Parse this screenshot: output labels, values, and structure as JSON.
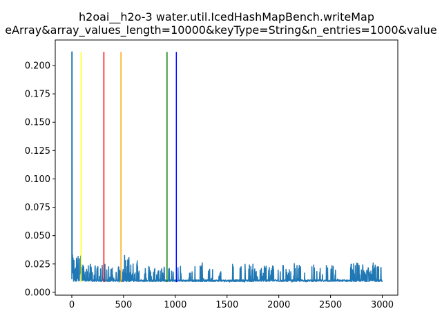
{
  "chart_data": {
    "type": "line",
    "title_line1": "h2oai__h2o-3 water.util.IcedHashMapBench.writeMap",
    "title_line2": "eArray&array_values_length=10000&keyType=String&n_entries=1000&value",
    "xlim": [
      -160,
      3150
    ],
    "ylim": [
      -0.0025,
      0.2225
    ],
    "xticks": [
      0,
      500,
      1000,
      1500,
      2000,
      2500,
      3000
    ],
    "yticks": [
      0.0,
      0.025,
      0.05,
      0.075,
      0.1,
      0.125,
      0.15,
      0.175,
      0.2
    ],
    "ytick_labels": [
      "0.000",
      "0.025",
      "0.050",
      "0.075",
      "0.100",
      "0.125",
      "0.150",
      "0.175",
      "0.200"
    ],
    "series": [
      {
        "color": "#1f77b4",
        "peak": {
          "x": 0,
          "y": 0.212
        },
        "baseline": 0.0095,
        "segments": [
          {
            "x0": 5,
            "x1": 95,
            "lo": 0.01,
            "hi": 0.033,
            "dense": 0.75
          },
          {
            "x0": 95,
            "x1": 200,
            "lo": 0.01,
            "hi": 0.025,
            "dense": 0.45
          },
          {
            "x0": 200,
            "x1": 320,
            "lo": 0.009,
            "hi": 0.024,
            "dense": 0.3
          },
          {
            "x0": 320,
            "x1": 460,
            "lo": 0.009,
            "hi": 0.025,
            "dense": 0.35
          },
          {
            "x0": 460,
            "x1": 640,
            "lo": 0.009,
            "hi": 0.033,
            "dense": 0.4
          },
          {
            "x0": 640,
            "x1": 920,
            "lo": 0.009,
            "hi": 0.024,
            "dense": 0.25
          },
          {
            "x0": 920,
            "x1": 1200,
            "lo": 0.009,
            "hi": 0.024,
            "dense": 0.1
          },
          {
            "x0": 1200,
            "x1": 1700,
            "lo": 0.009,
            "hi": 0.027,
            "dense": 0.12
          },
          {
            "x0": 1700,
            "x1": 1950,
            "lo": 0.009,
            "hi": 0.025,
            "dense": 0.3
          },
          {
            "x0": 1950,
            "x1": 2550,
            "lo": 0.009,
            "hi": 0.026,
            "dense": 0.12
          },
          {
            "x0": 2550,
            "x1": 2690,
            "lo": 0.009,
            "hi": 0.012,
            "dense": 0.05
          },
          {
            "x0": 2690,
            "x1": 2990,
            "lo": 0.009,
            "hi": 0.026,
            "dense": 0.45
          },
          {
            "x0": 2990,
            "x1": 3000,
            "lo": 0.009,
            "hi": 0.01,
            "dense": 0.0
          }
        ]
      }
    ],
    "vlines": [
      {
        "x": 90,
        "color": "#ffff00",
        "ymin": 0.009,
        "ymax": 0.212
      },
      {
        "x": 310,
        "color": "#ff0000",
        "ymin": 0.009,
        "ymax": 0.212
      },
      {
        "x": 475,
        "color": "#ffa500",
        "ymin": 0.009,
        "ymax": 0.212
      },
      {
        "x": 920,
        "color": "#008000",
        "ymin": 0.009,
        "ymax": 0.212
      },
      {
        "x": 1010,
        "color": "#0000ff",
        "ymin": 0.009,
        "ymax": 0.212
      }
    ]
  }
}
